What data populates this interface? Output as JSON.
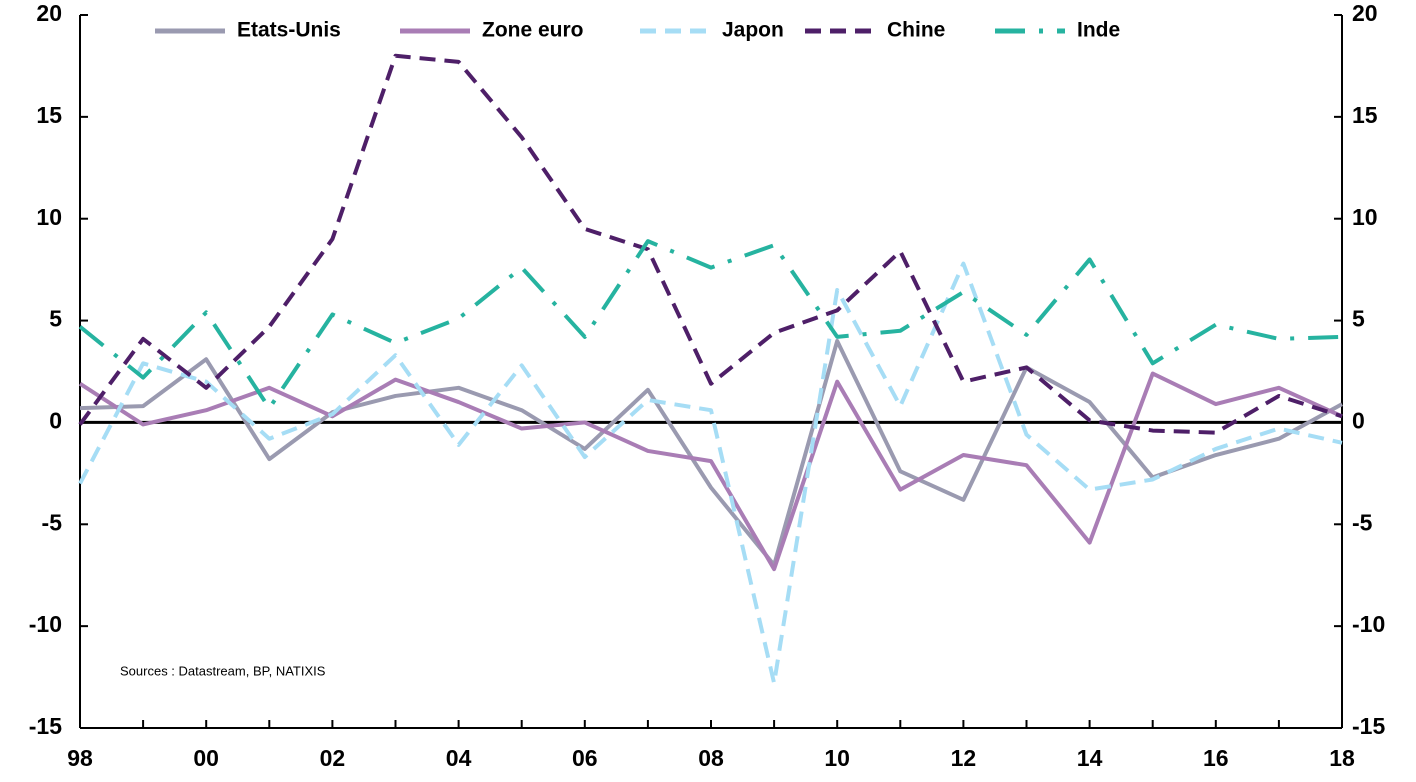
{
  "chart_data": {
    "type": "line",
    "categories": [
      "98",
      null,
      "00",
      null,
      "02",
      null,
      "04",
      null,
      "06",
      null,
      "08",
      null,
      "10",
      null,
      "12",
      null,
      "14",
      null,
      "16",
      null,
      "18"
    ],
    "series": [
      {
        "name": "Etats-Unis",
        "color": "#9a9ab0",
        "style": "solid",
        "values": [
          0.7,
          0.8,
          3.1,
          -1.8,
          0.5,
          1.3,
          1.7,
          0.6,
          -1.3,
          1.6,
          -3.2,
          -7.0,
          4.0,
          -2.4,
          -3.8,
          2.7,
          1.0,
          -2.7,
          -1.6,
          -0.8,
          0.9
        ]
      },
      {
        "name": "Zone euro",
        "color": "#a97db5",
        "style": "solid",
        "values": [
          1.9,
          -0.1,
          0.6,
          1.7,
          0.3,
          2.1,
          1.0,
          -0.3,
          0.0,
          -1.4,
          -1.9,
          -7.2,
          2.0,
          -3.3,
          -1.6,
          -2.1,
          -5.9,
          2.4,
          0.9,
          1.7,
          0.3
        ]
      },
      {
        "name": "Japon",
        "color": "#a6ddf5",
        "style": "dashed",
        "values": [
          -3.0,
          2.9,
          2.0,
          -0.8,
          0.4,
          3.3,
          -1.1,
          2.8,
          -1.7,
          1.1,
          0.6,
          -12.8,
          6.5,
          0.8,
          7.8,
          -0.6,
          -3.3,
          -2.8,
          -1.3,
          -0.3,
          -1.0
        ]
      },
      {
        "name": "Chine",
        "color": "#4e1f68",
        "style": "dashed",
        "values": [
          -0.1,
          4.1,
          1.7,
          4.7,
          9.0,
          18.0,
          17.7,
          14.0,
          9.5,
          8.5,
          1.9,
          4.4,
          5.5,
          8.4,
          2.0,
          2.7,
          0.1,
          -0.4,
          -0.5,
          1.3,
          0.3
        ]
      },
      {
        "name": "Inde",
        "color": "#26b3a0",
        "style": "dashdot",
        "values": [
          4.7,
          2.2,
          5.4,
          0.7,
          5.3,
          3.9,
          5.1,
          7.6,
          4.2,
          8.9,
          7.6,
          8.7,
          4.2,
          4.5,
          6.4,
          4.3,
          8.0,
          2.9,
          4.8,
          4.1,
          4.2
        ]
      }
    ],
    "ylim": [
      -15,
      20
    ],
    "yticks": [
      -15,
      -10,
      -5,
      0,
      5,
      10,
      15,
      20
    ],
    "y2lim": [
      -15,
      20
    ],
    "y2ticks": [
      -15,
      -10,
      -5,
      0,
      5,
      10,
      15,
      20
    ],
    "annotation": "Sources : Datastream, BP, NATIXIS",
    "legend": "top"
  }
}
